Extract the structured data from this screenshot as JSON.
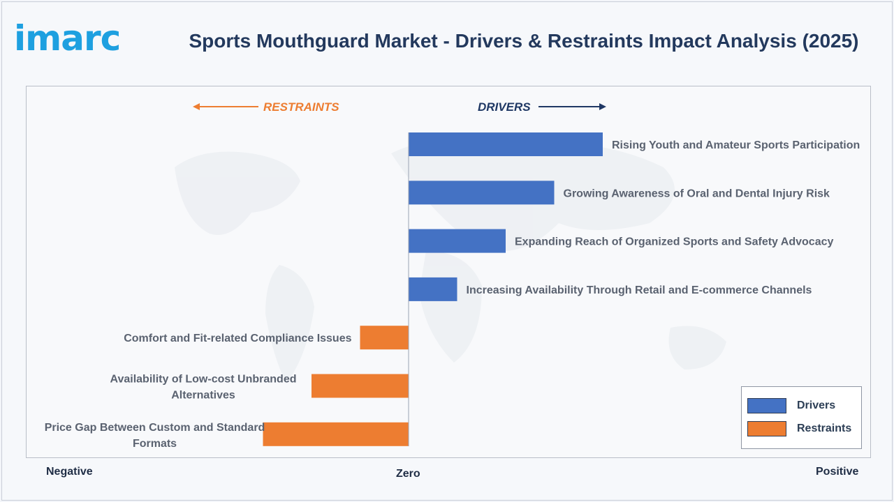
{
  "logo": {
    "text": "imarc",
    "color": "#1ea0e0"
  },
  "title": "Sports Mouthguard Market - Drivers & Restraints Impact Analysis (2025)",
  "chart_data": {
    "type": "bar",
    "orientation": "horizontal",
    "grid": false,
    "directions": {
      "restraints": "RESTRAINTS",
      "drivers": "DRIVERS"
    },
    "axis_labels": {
      "negative": "Negative",
      "zero": "Zero",
      "positive": "Positive"
    },
    "legend_position": "bottom-right",
    "series": [
      {
        "name": "Drivers",
        "color": "#4472c4",
        "items": [
          {
            "label": "Rising Youth and Amateur Sports Participation",
            "value": 4
          },
          {
            "label": "Growing Awareness of Oral and Dental Injury Risk",
            "value": 3
          },
          {
            "label": "Expanding Reach of Organized Sports and Safety Advocacy",
            "value": 2
          },
          {
            "label": "Increasing Availability Through Retail and E-commerce Channels",
            "value": 1
          }
        ]
      },
      {
        "name": "Restraints",
        "color": "#ed7d31",
        "items": [
          {
            "label": "Comfort and Fit-related Compliance Issues",
            "value": -1
          },
          {
            "label": "Availability of Low-cost Unbranded Alternatives",
            "value": -2
          },
          {
            "label": "Price Gap Between Custom and Standard Formats",
            "value": -3
          }
        ]
      }
    ],
    "direction_colors": {
      "restraints": "#ed7d31",
      "drivers": "#1f3864"
    }
  }
}
